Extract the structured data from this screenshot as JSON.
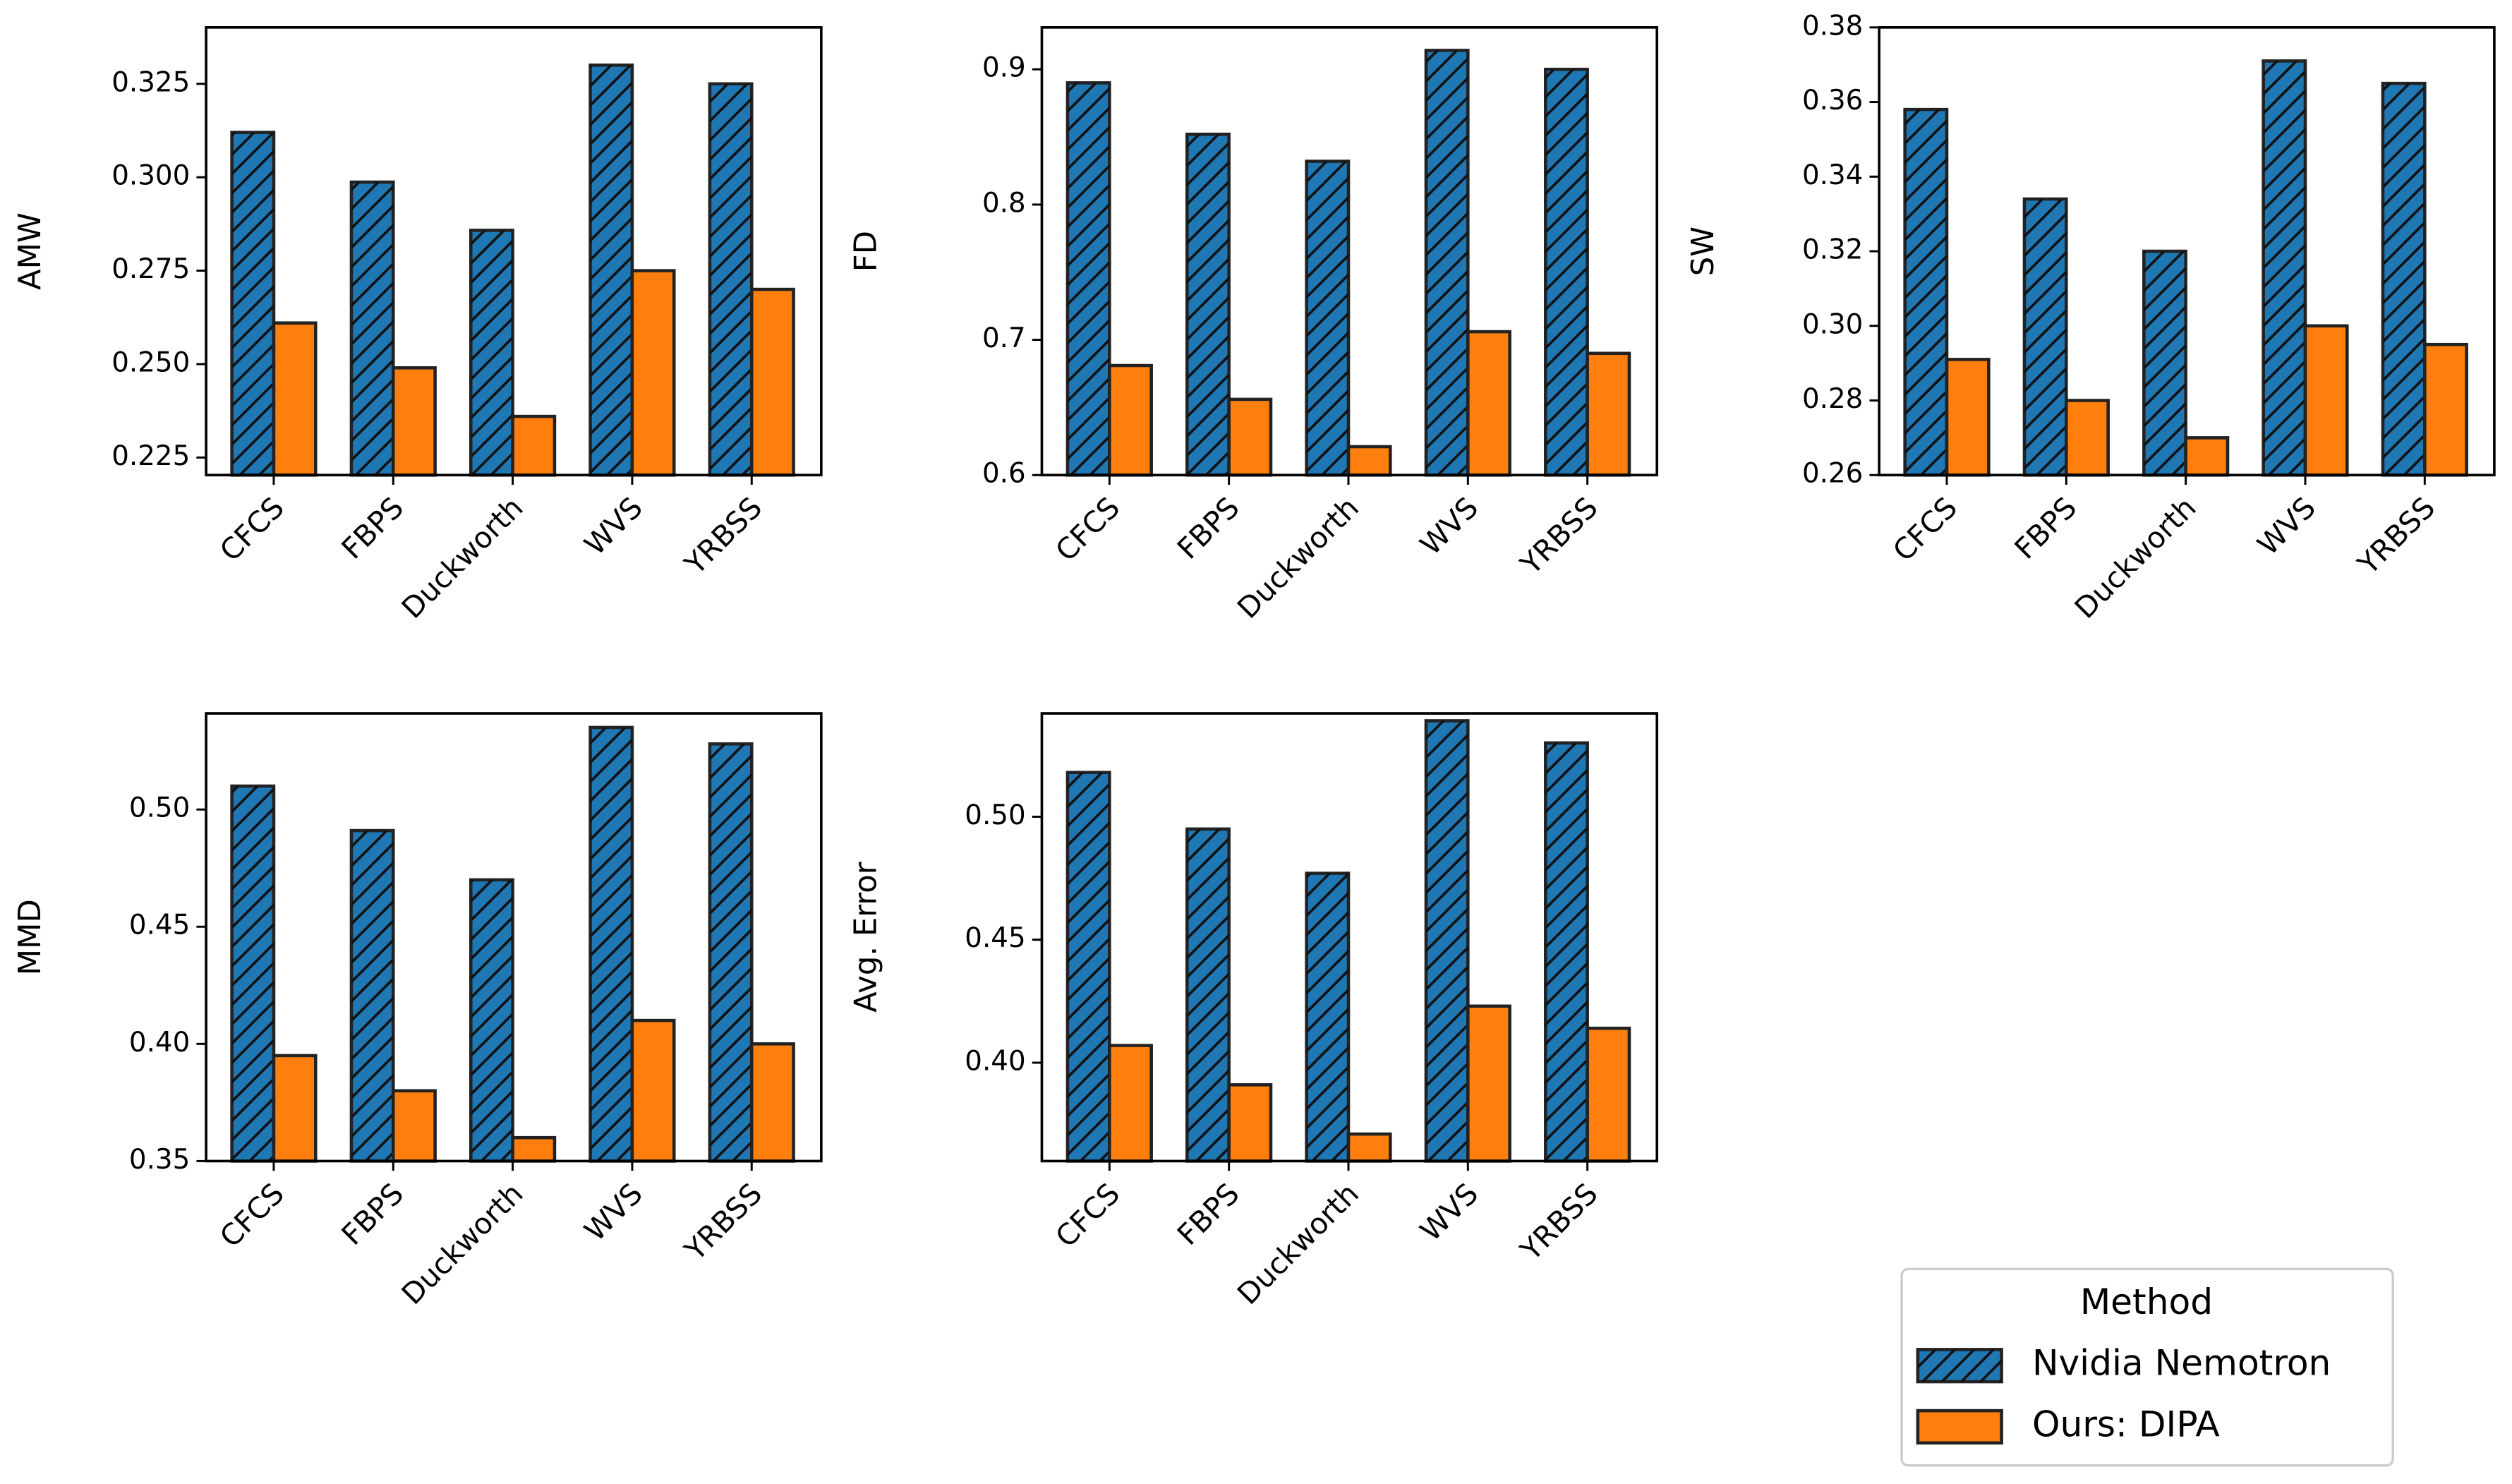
{
  "chart_data": [
    {
      "type": "bar",
      "ylabel": "AMW",
      "categories": [
        "CFCS",
        "FBPS",
        "Duckworth",
        "WVS",
        "YRBSS"
      ],
      "series": [
        {
          "name": "Nvidia Nemotron",
          "color": "#1f77b4",
          "hatch": true,
          "values": [
            0.312,
            0.2987,
            0.2858,
            0.33,
            0.325
          ]
        },
        {
          "name": "Ours: DIPA",
          "color": "#ff7f0e",
          "hatch": false,
          "values": [
            0.261,
            0.249,
            0.236,
            0.275,
            0.27
          ]
        }
      ],
      "ylim": [
        0.2203,
        0.3401
      ],
      "yticks": [
        0.225,
        {
          "value": 0.25,
          "label": "0.250"
        },
        0.275,
        {
          "value": 0.3,
          "label": "0.300"
        },
        0.325
      ]
    },
    {
      "type": "bar",
      "ylabel": "FD",
      "categories": [
        "CFCS",
        "FBPS",
        "Duckworth",
        "WVS",
        "YRBSS"
      ],
      "series": [
        {
          "name": "Nvidia Nemotron",
          "color": "#1f77b4",
          "hatch": true,
          "values": [
            0.89,
            0.852,
            0.832,
            0.914,
            0.9
          ]
        },
        {
          "name": "Ours: DIPA",
          "color": "#ff7f0e",
          "hatch": false,
          "values": [
            0.681,
            0.656,
            0.621,
            0.706,
            0.69
          ]
        }
      ],
      "ylim": [
        0.6,
        0.931
      ],
      "yticks": [
        0.6,
        0.7,
        0.8,
        0.9
      ]
    },
    {
      "type": "bar",
      "ylabel": "SW",
      "categories": [
        "CFCS",
        "FBPS",
        "Duckworth",
        "WVS",
        "YRBSS"
      ],
      "series": [
        {
          "name": "Nvidia Nemotron",
          "color": "#1f77b4",
          "hatch": true,
          "values": [
            0.358,
            0.334,
            0.32,
            0.371,
            0.365
          ]
        },
        {
          "name": "Ours: DIPA",
          "color": "#ff7f0e",
          "hatch": false,
          "values": [
            0.291,
            0.28,
            0.27,
            0.3,
            0.295
          ]
        }
      ],
      "ylim": [
        0.26,
        0.38
      ],
      "yticks": [
        0.26,
        0.28,
        {
          "value": 0.3,
          "label": "0.30"
        },
        0.32,
        0.34,
        0.36,
        0.38
      ]
    },
    {
      "type": "bar",
      "ylabel": "MMD",
      "categories": [
        "CFCS",
        "FBPS",
        "Duckworth",
        "WVS",
        "YRBSS"
      ],
      "series": [
        {
          "name": "Nvidia Nemotron",
          "color": "#1f77b4",
          "hatch": true,
          "values": [
            0.51,
            0.491,
            0.47,
            0.535,
            0.528
          ]
        },
        {
          "name": "Ours: DIPA",
          "color": "#ff7f0e",
          "hatch": false,
          "values": [
            0.395,
            0.38,
            0.36,
            0.41,
            0.4
          ]
        }
      ],
      "ylim": [
        0.35,
        0.541
      ],
      "yticks": [
        0.35,
        {
          "value": 0.4,
          "label": "0.40"
        },
        0.45,
        {
          "value": 0.5,
          "label": "0.50"
        }
      ]
    },
    {
      "type": "bar",
      "ylabel": "Avg. Error",
      "categories": [
        "CFCS",
        "FBPS",
        "Duckworth",
        "WVS",
        "YRBSS"
      ],
      "series": [
        {
          "name": "Nvidia Nemotron",
          "color": "#1f77b4",
          "hatch": true,
          "values": [
            0.518,
            0.495,
            0.477,
            0.539,
            0.53
          ]
        },
        {
          "name": "Ours: DIPA",
          "color": "#ff7f0e",
          "hatch": false,
          "values": [
            0.407,
            0.391,
            0.371,
            0.423,
            0.414
          ]
        }
      ],
      "ylim": [
        0.36,
        0.542
      ],
      "yticks": [
        {
          "value": 0.4,
          "label": "0.40"
        },
        0.45,
        {
          "value": 0.5,
          "label": "0.50"
        }
      ]
    }
  ],
  "legend": {
    "title": "Method"
  }
}
